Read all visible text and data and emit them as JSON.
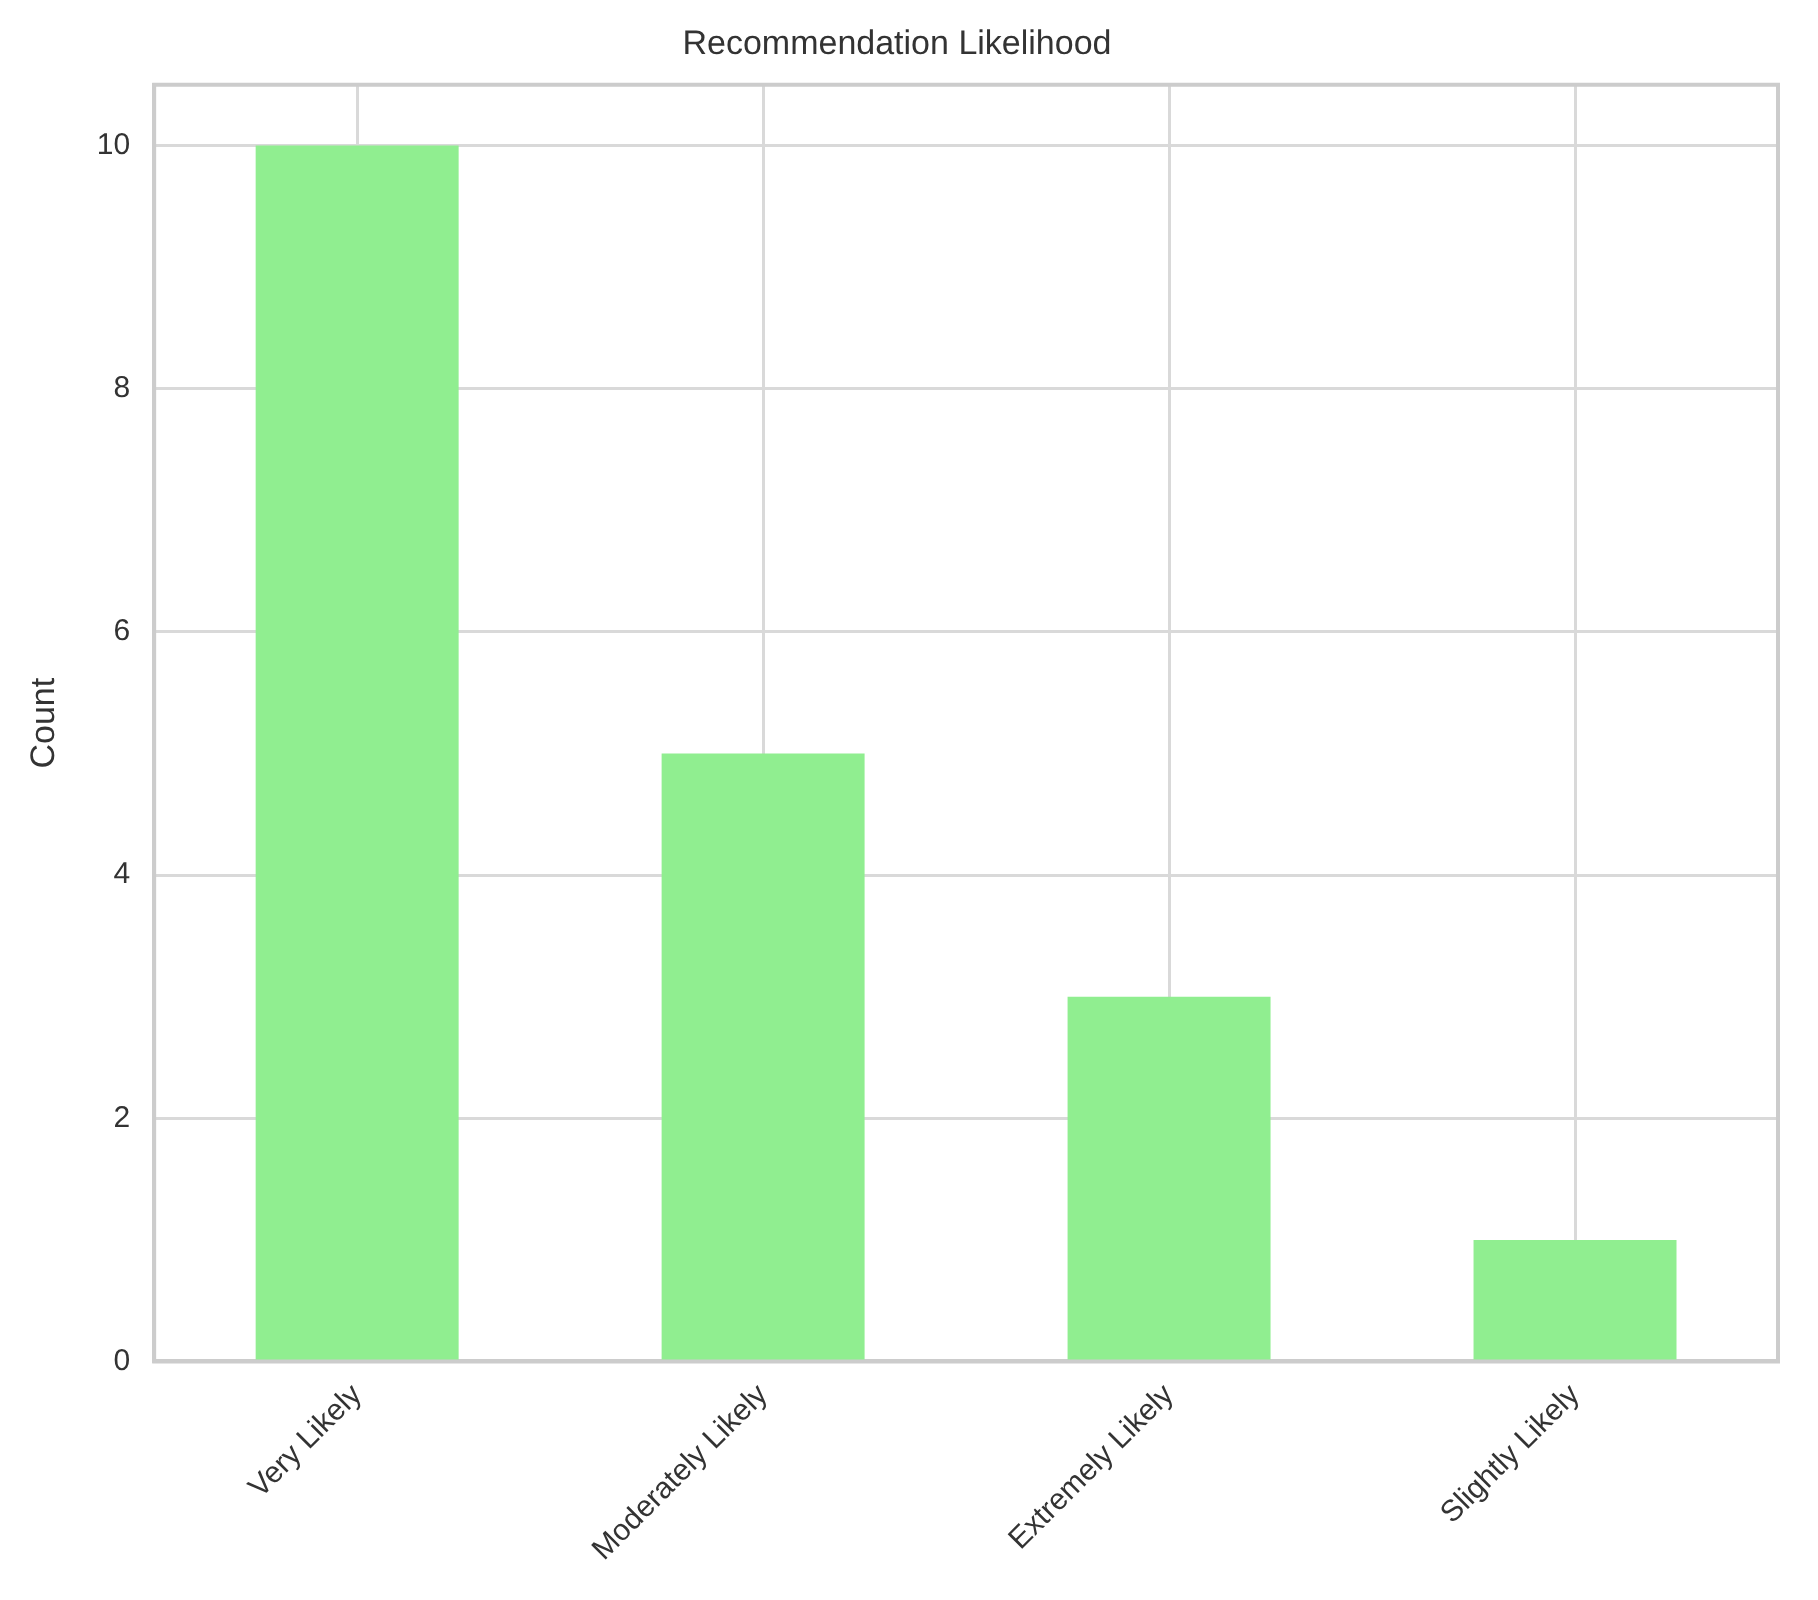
{
  "chart_data": {
    "type": "bar",
    "title": "Recommendation Likelihood",
    "ylabel": "Count",
    "categories": [
      "Very Likely",
      "Moderately Likely",
      "Extremely Likely",
      "Slightly Likely"
    ],
    "values": [
      10,
      5,
      3,
      1
    ],
    "color": "#90ee90",
    "ylim": [
      0,
      10.5
    ],
    "yticks": [
      0,
      2,
      4,
      6,
      8,
      10
    ],
    "grid": true
  }
}
